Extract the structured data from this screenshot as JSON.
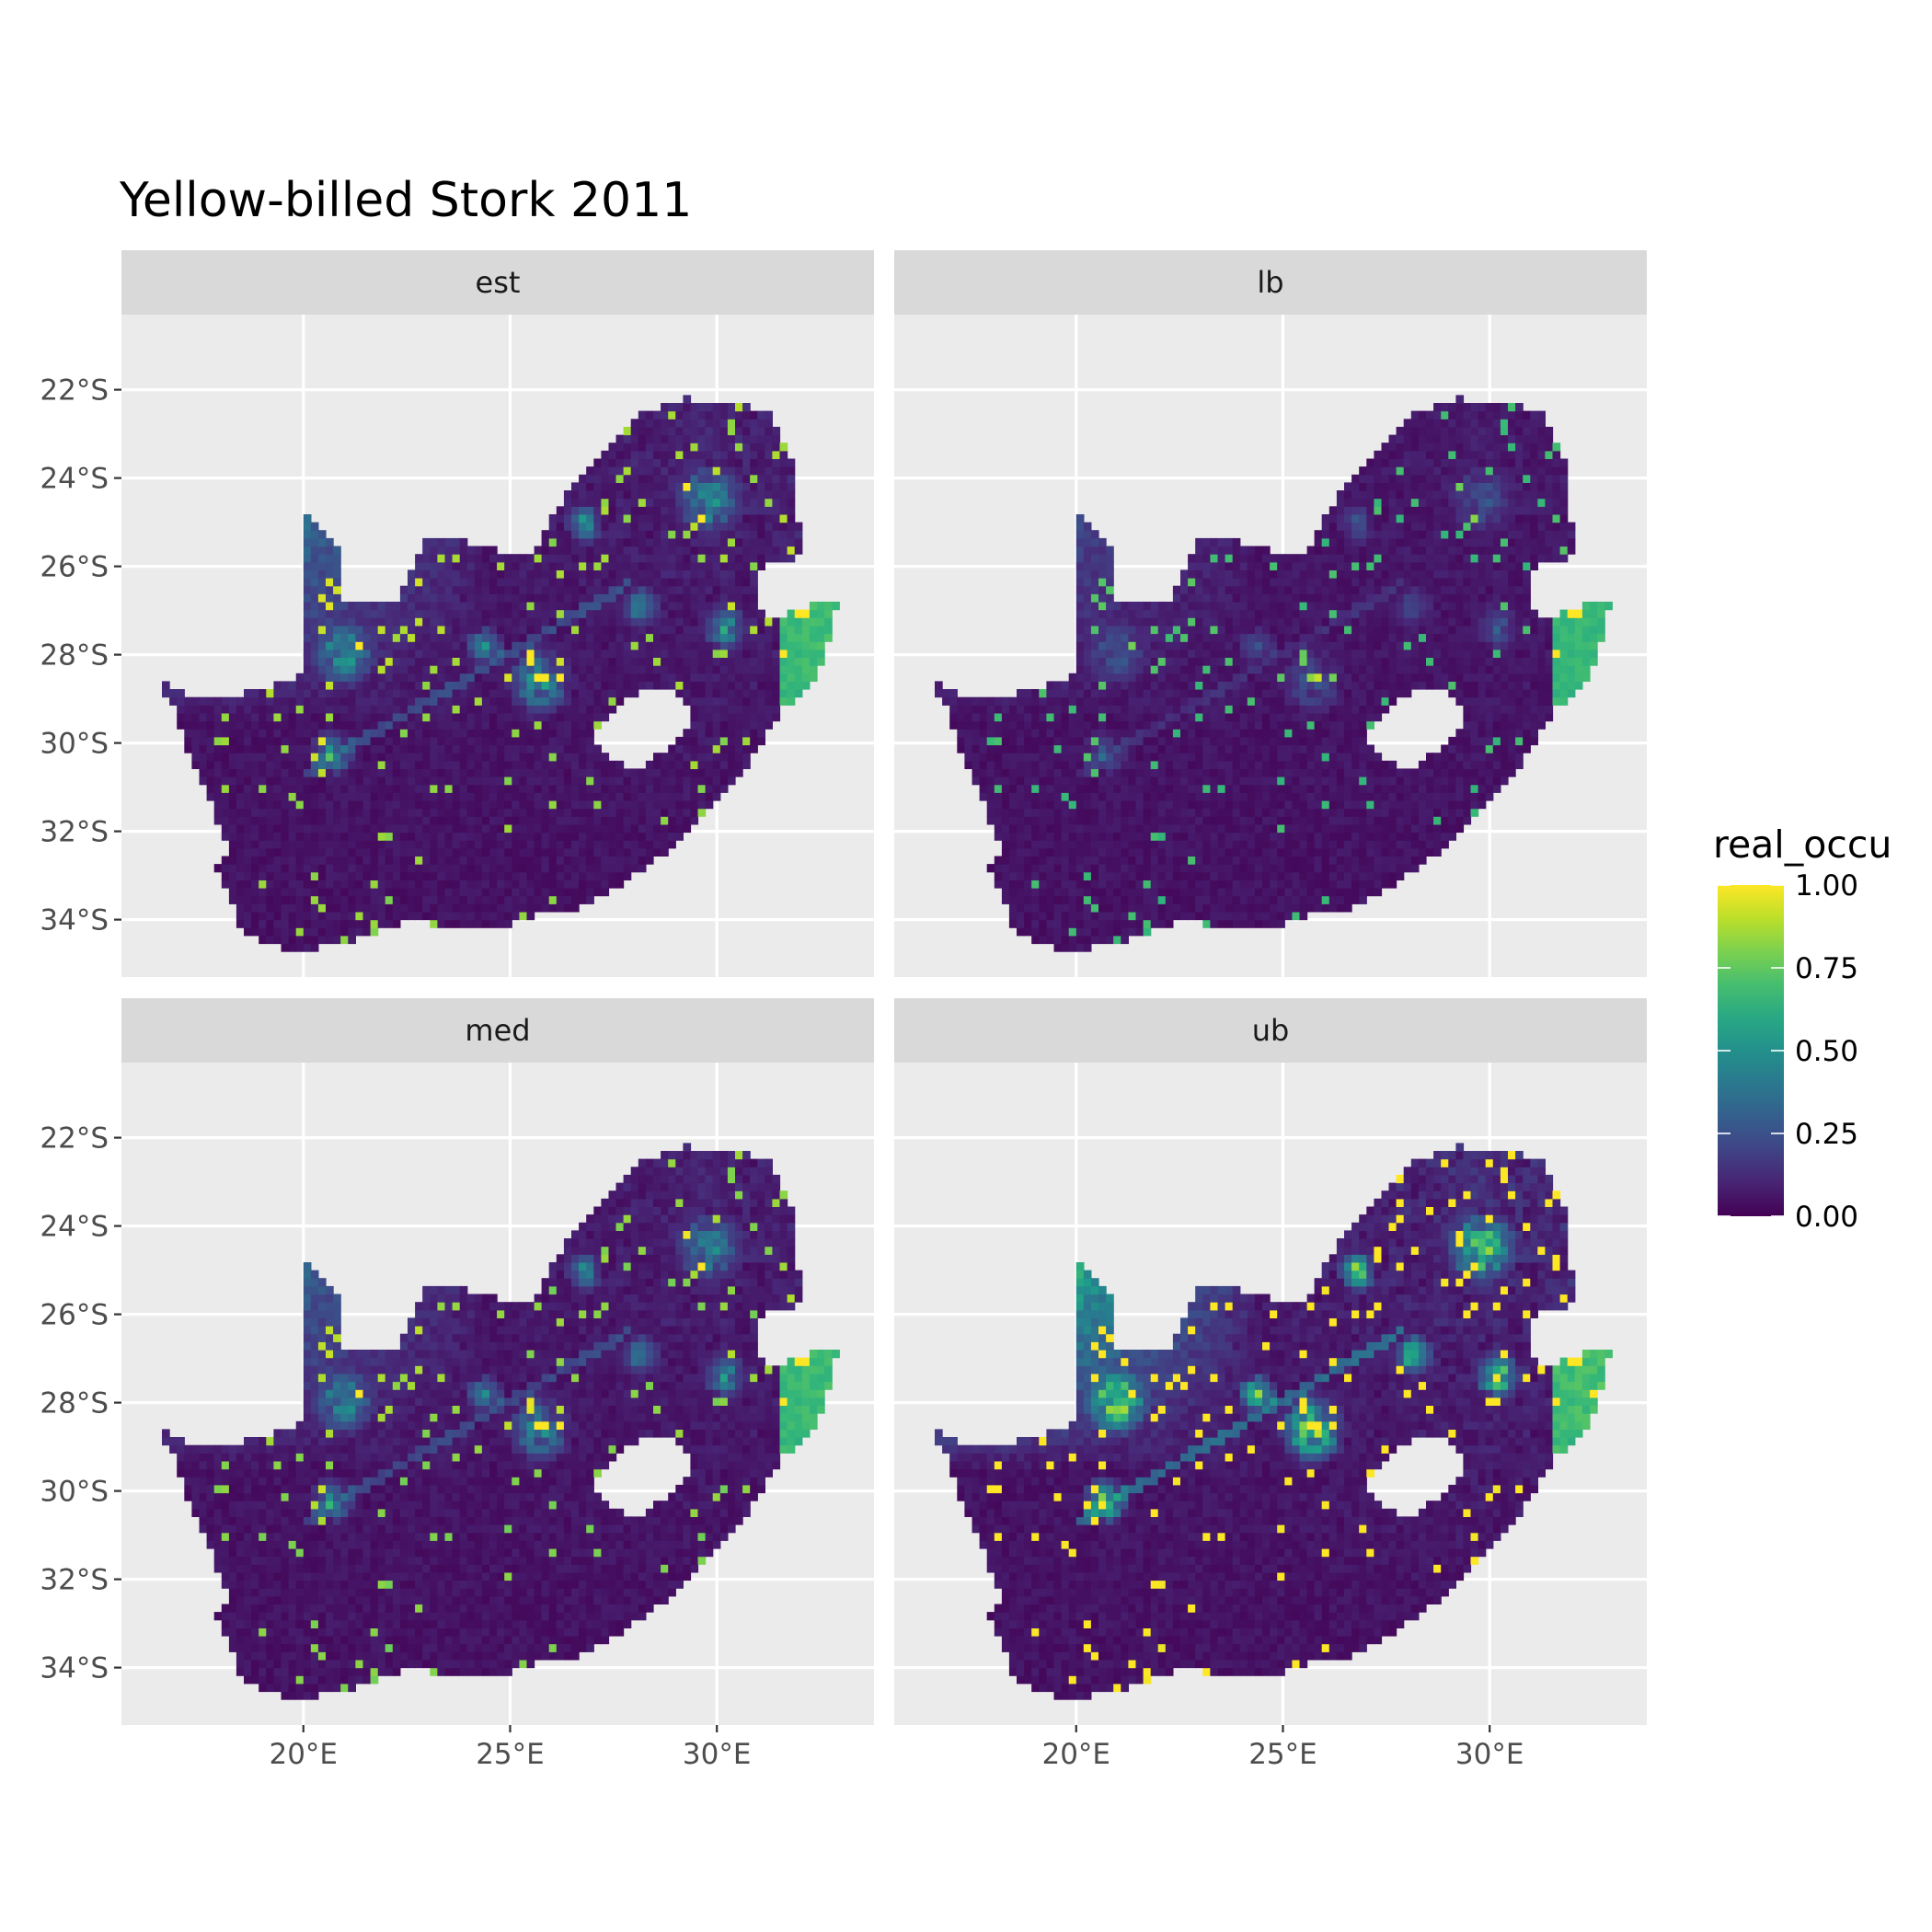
{
  "chart_data": {
    "type": "heatmap",
    "title": "Yellow-billed Stork 2011",
    "facets": [
      {
        "label": "est",
        "intensity": 0.55,
        "northwest_gradient": 0.45
      },
      {
        "label": "lb",
        "intensity": 0.25,
        "northwest_gradient": 0.25
      },
      {
        "label": "med",
        "intensity": 0.5,
        "northwest_gradient": 0.4
      },
      {
        "label": "ub",
        "intensity": 0.9,
        "northwest_gradient": 0.85
      }
    ],
    "x_axis": {
      "xlim": [
        15.6,
        33.8
      ],
      "ticks": [
        20,
        25,
        30
      ],
      "tick_labels": [
        "20°E",
        "25°E",
        "30°E"
      ]
    },
    "y_axis": {
      "ylim": [
        -35.3,
        -20.3
      ],
      "ticks": [
        -22,
        -24,
        -26,
        -28,
        -30,
        -32,
        -34
      ],
      "tick_labels": [
        "22°S",
        "24°S",
        "26°S",
        "28°S",
        "30°S",
        "32°S",
        "34°S"
      ]
    },
    "legend": {
      "title": "real_occu",
      "placement": "right",
      "range": [
        0,
        1
      ],
      "ticks": [
        1.0,
        0.75,
        0.5,
        0.25,
        0.0
      ],
      "tick_labels": [
        "1.00",
        "0.75",
        "0.50",
        "0.25",
        "0.00"
      ],
      "colormap": [
        "#440154",
        "#3b528b",
        "#21918c",
        "#5ec962",
        "#fde725"
      ]
    },
    "panel_background": "#ebebeb",
    "strip_background": "#d9d9d9",
    "grid": true
  }
}
